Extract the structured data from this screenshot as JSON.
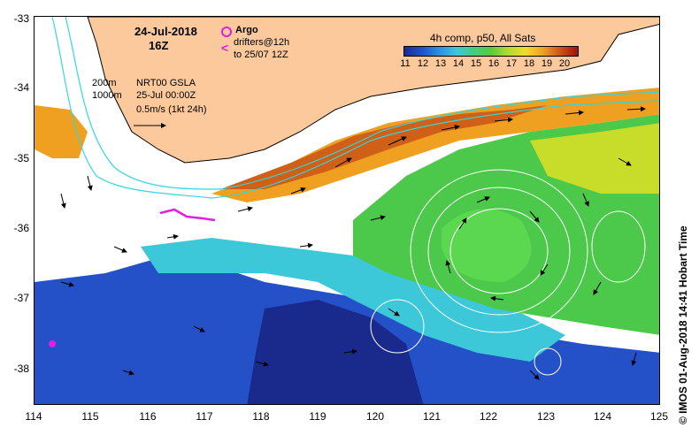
{
  "header": {
    "date": "24-Jul-2018",
    "hour": "16Z"
  },
  "legend": {
    "argo_label": "Argo",
    "drifters_label": "drifters@12h",
    "drifters_label2": "to 25/07 12Z"
  },
  "info": {
    "depth1": "200m",
    "depth2": "1000m",
    "line1": "NRT00 GSLA",
    "line2": "25-Jul 00:00Z",
    "line3": "0.5m/s (1kt 24h)"
  },
  "colorbar": {
    "title": "4h comp, p50, All Sats",
    "ticks": [
      "11",
      "12",
      "13",
      "14",
      "15",
      "16",
      "17",
      "18",
      "19",
      "20"
    ],
    "colors": [
      "#1a2a8c",
      "#1f4fd0",
      "#2a8fe0",
      "#3cc8d8",
      "#3fcf80",
      "#5cc83c",
      "#b4dc2a",
      "#f0dc28",
      "#f0a020",
      "#d0501a",
      "#a01010"
    ]
  },
  "axes": {
    "x_ticks": [
      "114",
      "115",
      "116",
      "117",
      "118",
      "119",
      "120",
      "121",
      "122",
      "123",
      "124",
      "125"
    ],
    "y_ticks": [
      "-33",
      "-34",
      "-35",
      "-36",
      "-37",
      "-38"
    ]
  },
  "credit": "© IMOS 01-Aug-2018 14:41 Hobart Time"
}
